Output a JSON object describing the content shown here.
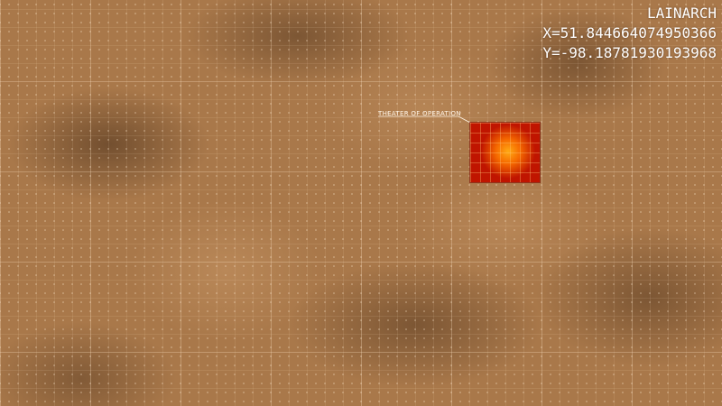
{
  "hud": {
    "title": "LAINARCH",
    "x_readout": "X=51.844664074950366",
    "y_readout": "Y=-98.18781930193968"
  },
  "map": {
    "theater_label": "THEATER OF OPERATION",
    "terrain_color": "#a9784a",
    "theater_color": "#c01500",
    "theater_core_color": "#ffaa14"
  }
}
